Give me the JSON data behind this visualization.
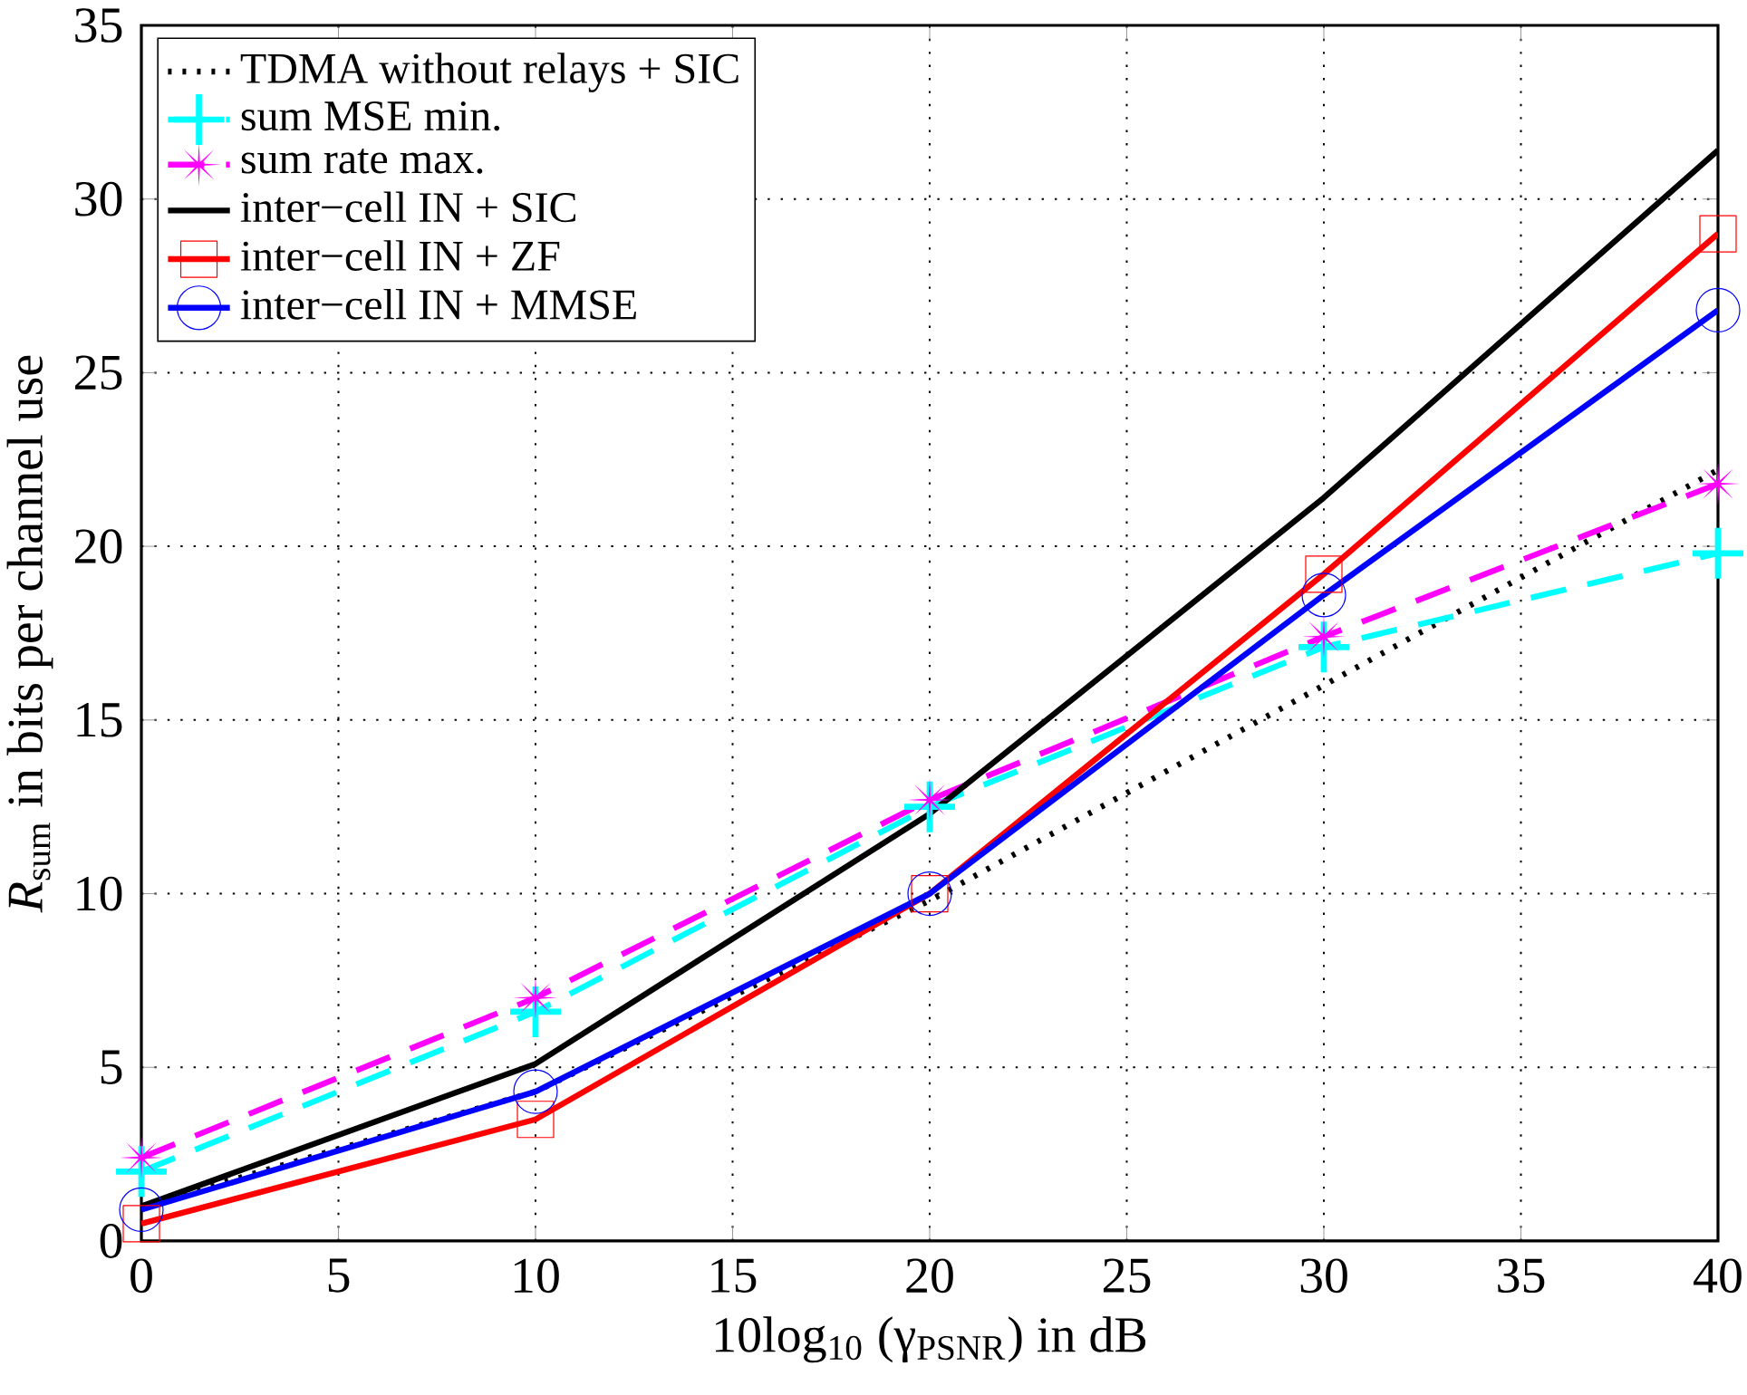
{
  "chart_data": {
    "type": "line",
    "xlabel": "10log$_{10}$ (γ$_{PSNR}$) in dB",
    "ylabel": "*R*$_{sum}$ in bits per channel use",
    "x": [
      0,
      10,
      20,
      30,
      40
    ],
    "xlim": [
      0,
      40
    ],
    "xticks": [
      0,
      5,
      10,
      15,
      20,
      25,
      30,
      35,
      40
    ],
    "ylim": [
      0,
      35
    ],
    "yticks": [
      0,
      5,
      10,
      15,
      20,
      25,
      30,
      35
    ],
    "grid": true,
    "legend": "top left",
    "series": [
      {
        "name": "TDMA without relays + SIC",
        "color": "#000000",
        "line_style": "dotted",
        "marker": "none",
        "values": [
          1.0,
          4.3,
          9.8,
          16.0,
          22.2
        ]
      },
      {
        "name": "sum MSE min.",
        "color": "#00ffff",
        "line_style": "dashed",
        "marker": "cross",
        "values": [
          2.0,
          6.6,
          12.5,
          17.1,
          19.8
        ]
      },
      {
        "name": "sum rate max.",
        "color": "#ff00ff",
        "line_style": "dashed",
        "marker": "star",
        "values": [
          2.4,
          7.0,
          12.7,
          17.4,
          21.8
        ]
      },
      {
        "name": "inter−cell IN + SIC",
        "color": "#000000",
        "line_style": "solid",
        "marker": "none",
        "values": [
          1.0,
          5.1,
          12.3,
          21.4,
          31.4
        ]
      },
      {
        "name": "inter−cell IN + ZF",
        "color": "#ff0000",
        "line_style": "solid",
        "marker": "square",
        "values": [
          0.5,
          3.5,
          10.0,
          19.2,
          29.0
        ]
      },
      {
        "name": "inter−cell IN + MMSE",
        "color": "#0000ff",
        "line_style": "solid",
        "marker": "circle",
        "values": [
          0.9,
          4.3,
          10.0,
          18.6,
          26.8
        ]
      }
    ]
  }
}
